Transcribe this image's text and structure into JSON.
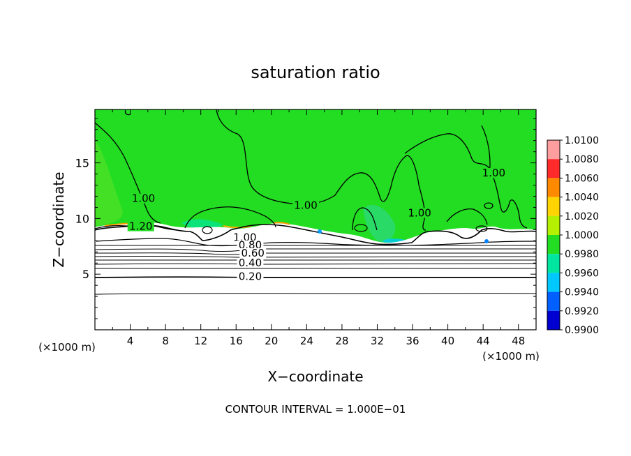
{
  "chart_data": {
    "type": "heatmap",
    "title": "saturation ratio",
    "xlabel": "X−coordinate",
    "ylabel": "Z−coordinate",
    "x_unit_left": "(×1000 m)",
    "x_unit_right": "(×1000 m)",
    "xlim": [
      0,
      50
    ],
    "ylim": [
      0,
      19.8
    ],
    "xticks": [
      "4",
      "8",
      "12",
      "16",
      "20",
      "24",
      "28",
      "32",
      "36",
      "40",
      "44",
      "48"
    ],
    "xtick_values": [
      4,
      8,
      12,
      16,
      20,
      24,
      28,
      32,
      36,
      40,
      44,
      48
    ],
    "yticks": [
      "5",
      "10",
      "15"
    ],
    "ytick_values": [
      5,
      10,
      15
    ],
    "footer": "CONTOUR INTERVAL = 1.000E−01",
    "colorbar": {
      "labels": [
        "1.0100",
        "1.0080",
        "1.0060",
        "1.0040",
        "1.0020",
        "1.0000",
        "0.9980",
        "0.9960",
        "0.9940",
        "0.9920",
        "0.9900"
      ],
      "values": [
        1.01,
        1.008,
        1.006,
        1.004,
        1.002,
        1.0,
        0.998,
        0.996,
        0.994,
        0.992,
        0.99
      ],
      "colors": [
        "#ff9e9e",
        "#ff2a2a",
        "#ff8a00",
        "#ffd400",
        "#b4f000",
        "#22dd22",
        "#00e6a0",
        "#00c8ff",
        "#0060ff",
        "#0000d0",
        "#5a0090"
      ]
    },
    "contour_labels": [
      {
        "text": "1.00",
        "x": 23.9,
        "z": 11.2
      },
      {
        "text": "1.00",
        "x": 5.5,
        "z": 11.8
      },
      {
        "text": "1.20",
        "x": 5.2,
        "z": 9.3
      },
      {
        "text": "1.00",
        "x": 36.8,
        "z": 10.5
      },
      {
        "text": "1.00",
        "x": 45.2,
        "z": 14.1
      },
      {
        "text": "1.00",
        "x": 17.0,
        "z": 8.3
      },
      {
        "text": "0.80",
        "x": 17.6,
        "z": 7.6
      },
      {
        "text": "0.60",
        "x": 17.9,
        "z": 6.9
      },
      {
        "text": "0.40",
        "x": 17.6,
        "z": 6.0
      },
      {
        "text": "0.20",
        "x": 17.6,
        "z": 4.8
      }
    ],
    "grid": false,
    "legend": "right"
  }
}
